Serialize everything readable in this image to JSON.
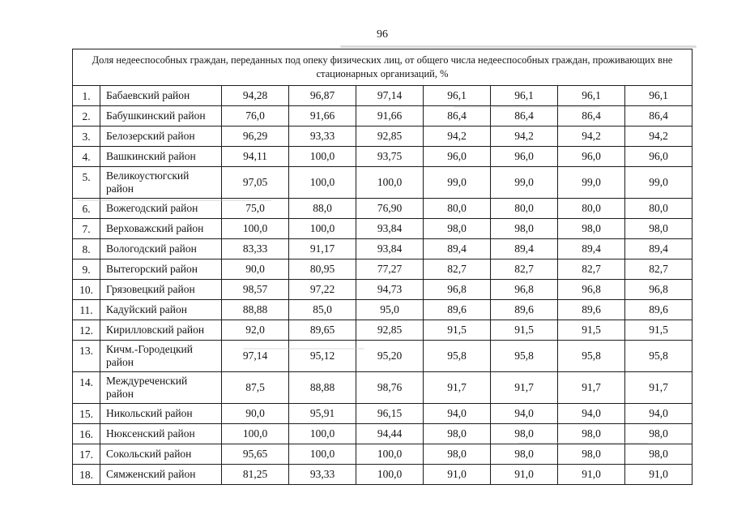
{
  "page": {
    "number": "96"
  },
  "table": {
    "title": "Доля недееспособных граждан, переданных под опеку физических лиц, от общего числа недееспособных граждан, проживающих вне\nстационарных организаций, %",
    "rows": [
      {
        "num": "1.",
        "name": "Бабаевский район",
        "values": [
          "94,28",
          "96,87",
          "97,14",
          "96,1",
          "96,1",
          "96,1",
          "96,1"
        ]
      },
      {
        "num": "2.",
        "name": "Бабушкинский район",
        "values": [
          "76,0",
          "91,66",
          "91,66",
          "86,4",
          "86,4",
          "86,4",
          "86,4"
        ]
      },
      {
        "num": "3.",
        "name": "Белозерский район",
        "values": [
          "96,29",
          "93,33",
          "92,85",
          "94,2",
          "94,2",
          "94,2",
          "94,2"
        ]
      },
      {
        "num": "4.",
        "name": "Вашкинский район",
        "values": [
          "94,11",
          "100,0",
          "93,75",
          "96,0",
          "96,0",
          "96,0",
          "96,0"
        ]
      },
      {
        "num": "5.",
        "name": "Великоустюгский\nрайон",
        "values": [
          "97,05",
          "100,0",
          "100,0",
          "99,0",
          "99,0",
          "99,0",
          "99,0"
        ]
      },
      {
        "num": "6.",
        "name": "Вожегодский район",
        "values": [
          "75,0",
          "88,0",
          "76,90",
          "80,0",
          "80,0",
          "80,0",
          "80,0"
        ]
      },
      {
        "num": "7.",
        "name": "Верховажский район",
        "values": [
          "100,0",
          "100,0",
          "93,84",
          "98,0",
          "98,0",
          "98,0",
          "98,0"
        ]
      },
      {
        "num": "8.",
        "name": "Вологодский район",
        "values": [
          "83,33",
          "91,17",
          "93,84",
          "89,4",
          "89,4",
          "89,4",
          "89,4"
        ]
      },
      {
        "num": "9.",
        "name": "Вытегорский район",
        "values": [
          "90,0",
          "80,95",
          "77,27",
          "82,7",
          "82,7",
          "82,7",
          "82,7"
        ]
      },
      {
        "num": "10.",
        "name": "Грязовецкий район",
        "values": [
          "98,57",
          "97,22",
          "94,73",
          "96,8",
          "96,8",
          "96,8",
          "96,8"
        ]
      },
      {
        "num": "11.",
        "name": "Кадуйский район",
        "values": [
          "88,88",
          "85,0",
          "95,0",
          "89,6",
          "89,6",
          "89,6",
          "89,6"
        ]
      },
      {
        "num": "12.",
        "name": "Кирилловский район",
        "values": [
          "92,0",
          "89,65",
          "92,85",
          "91,5",
          "91,5",
          "91,5",
          "91,5"
        ]
      },
      {
        "num": "13.",
        "name": "Кичм.-Городецкий\nрайон",
        "values": [
          "97,14",
          "95,12",
          "95,20",
          "95,8",
          "95,8",
          "95,8",
          "95,8"
        ]
      },
      {
        "num": "14.",
        "name": "Междуреченский\nрайон",
        "values": [
          "87,5",
          "88,88",
          "98,76",
          "91,7",
          "91,7",
          "91,7",
          "91,7"
        ]
      },
      {
        "num": "15.",
        "name": "Никольский район",
        "values": [
          "90,0",
          "95,91",
          "96,15",
          "94,0",
          "94,0",
          "94,0",
          "94,0"
        ]
      },
      {
        "num": "16.",
        "name": "Нюксенский район",
        "values": [
          "100,0",
          "100,0",
          "94,44",
          "98,0",
          "98,0",
          "98,0",
          "98,0"
        ]
      },
      {
        "num": "17.",
        "name": "Сокольский район",
        "values": [
          "95,65",
          "100,0",
          "100,0",
          "98,0",
          "98,0",
          "98,0",
          "98,0"
        ]
      },
      {
        "num": "18.",
        "name": "Сямженский район",
        "values": [
          "81,25",
          "93,33",
          "100,0",
          "91,0",
          "91,0",
          "91,0",
          "91,0"
        ]
      }
    ]
  }
}
